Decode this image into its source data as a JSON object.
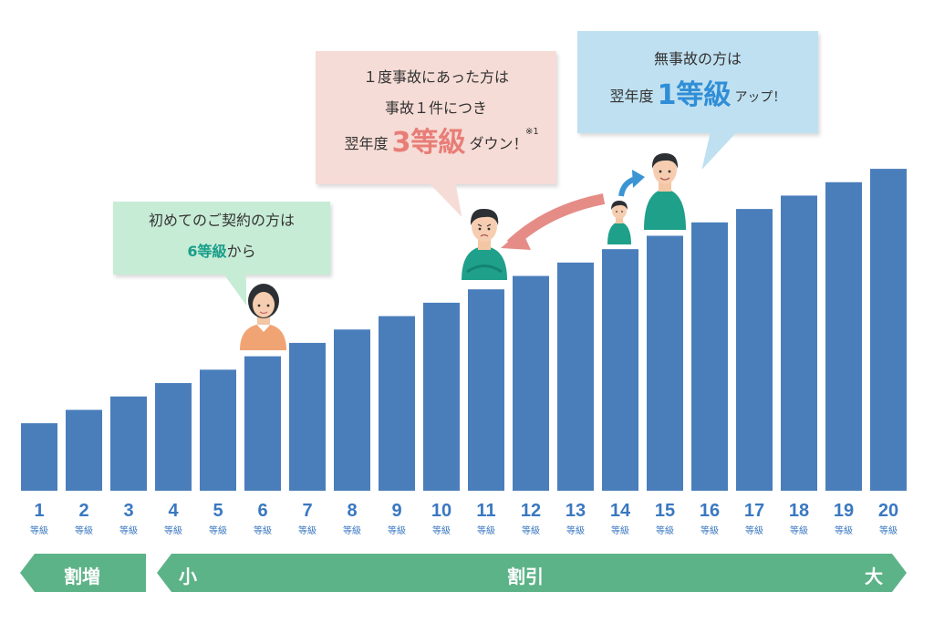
{
  "chart_data": {
    "type": "bar",
    "categories": [
      "1",
      "2",
      "3",
      "4",
      "5",
      "6",
      "7",
      "8",
      "9",
      "10",
      "11",
      "12",
      "13",
      "14",
      "15",
      "16",
      "17",
      "18",
      "19",
      "20"
    ],
    "tick_sub_label": "等級",
    "values": [
      1,
      2,
      3,
      4,
      5,
      6,
      7,
      8,
      9,
      10,
      11,
      12,
      13,
      14,
      15,
      16,
      17,
      18,
      19,
      20
    ],
    "bar_color": "#4a7ebb",
    "label_color": "#3a78c0"
  },
  "bubbles": {
    "first_contract": {
      "line1": "初めてのご契約の方は",
      "grade": "6等級",
      "suffix": "から",
      "bg_color": "#c7ecd6",
      "accent_color": "#1a9e8a"
    },
    "accident": {
      "line1": "１度事故にあった方は",
      "line2": "事故１件につき",
      "prefix": "翌年度",
      "grade": "3等級",
      "suffix": "ダウン！",
      "note": "※1",
      "bg_color": "#f6dcd6",
      "accent_color": "#e87d77"
    },
    "no_accident": {
      "line1": "無事故の方は",
      "prefix": "翌年度",
      "grade": "1等級",
      "suffix": "アップ！",
      "bg_color": "#bfe0f1",
      "accent_color": "#2f8ed6"
    }
  },
  "bands": {
    "surcharge_label": "割増",
    "discount_label": "割引",
    "small_label": "小",
    "large_label": "大",
    "color": "#5db388"
  },
  "people": {
    "woman_grade": 6,
    "man_grade": 11,
    "man_small_grade": 14,
    "man_large_grade": 15
  }
}
